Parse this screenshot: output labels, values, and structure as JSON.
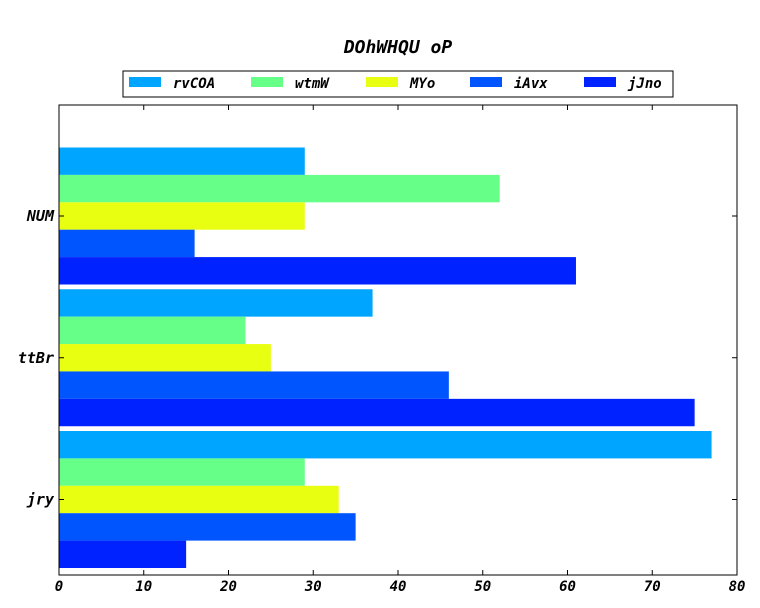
{
  "chart_data": {
    "type": "bar",
    "orientation": "horizontal",
    "title": "DOhWHQU oP",
    "xlabel": "",
    "ylabel": "",
    "categories": [
      "NUM",
      "ttBr",
      "jry"
    ],
    "xlim": [
      0,
      80
    ],
    "xticks": [
      "0",
      "10",
      "20",
      "30",
      "40",
      "50",
      "60",
      "70",
      "80"
    ],
    "grid": false,
    "legend_position": "top-center",
    "series": [
      {
        "name": "rvCOA",
        "color": "#00a5ff",
        "values": [
          29,
          37,
          77
        ]
      },
      {
        "name": "wtmW",
        "color": "#66ff88",
        "values": [
          52,
          22,
          29
        ]
      },
      {
        "name": "MYo",
        "color": "#e8ff12",
        "values": [
          29,
          25,
          33
        ]
      },
      {
        "name": "iAvx",
        "color": "#0055ff",
        "values": [
          16,
          46,
          35
        ]
      },
      {
        "name": "jJno",
        "color": "#0022ff",
        "values": [
          61,
          75,
          15
        ]
      }
    ]
  }
}
